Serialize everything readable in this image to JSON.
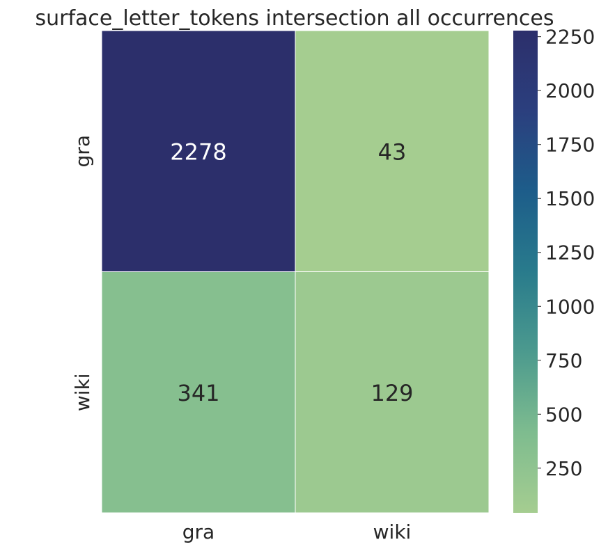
{
  "chart_data": {
    "type": "heatmap",
    "title": "surface_letter_tokens intersection all occurrences",
    "xlabel": "",
    "ylabel": "",
    "x_categories": [
      "gra",
      "wiki"
    ],
    "y_categories": [
      "gra",
      "wiki"
    ],
    "values": [
      [
        2278,
        43
      ],
      [
        341,
        129
      ]
    ],
    "cell_labels": [
      [
        "2278",
        "43"
      ],
      [
        "341",
        "129"
      ]
    ],
    "colorbar": {
      "min": 43,
      "max": 2278,
      "ticks": [
        250,
        500,
        750,
        1000,
        1250,
        1500,
        1750,
        2000,
        2250
      ],
      "tick_labels": [
        "250",
        "500",
        "750",
        "1000",
        "1250",
        "1500",
        "1750",
        "2000",
        "2250"
      ],
      "colormap": "crest",
      "colors": [
        "#a5cd90",
        "#7ebc8f",
        "#4c9a8e",
        "#297b8c",
        "#1d5d8a",
        "#2b3f7e",
        "#2c2f6b"
      ]
    },
    "text_colors": {
      "dark": "#262626",
      "light": "#ffffff"
    },
    "grid": false
  }
}
